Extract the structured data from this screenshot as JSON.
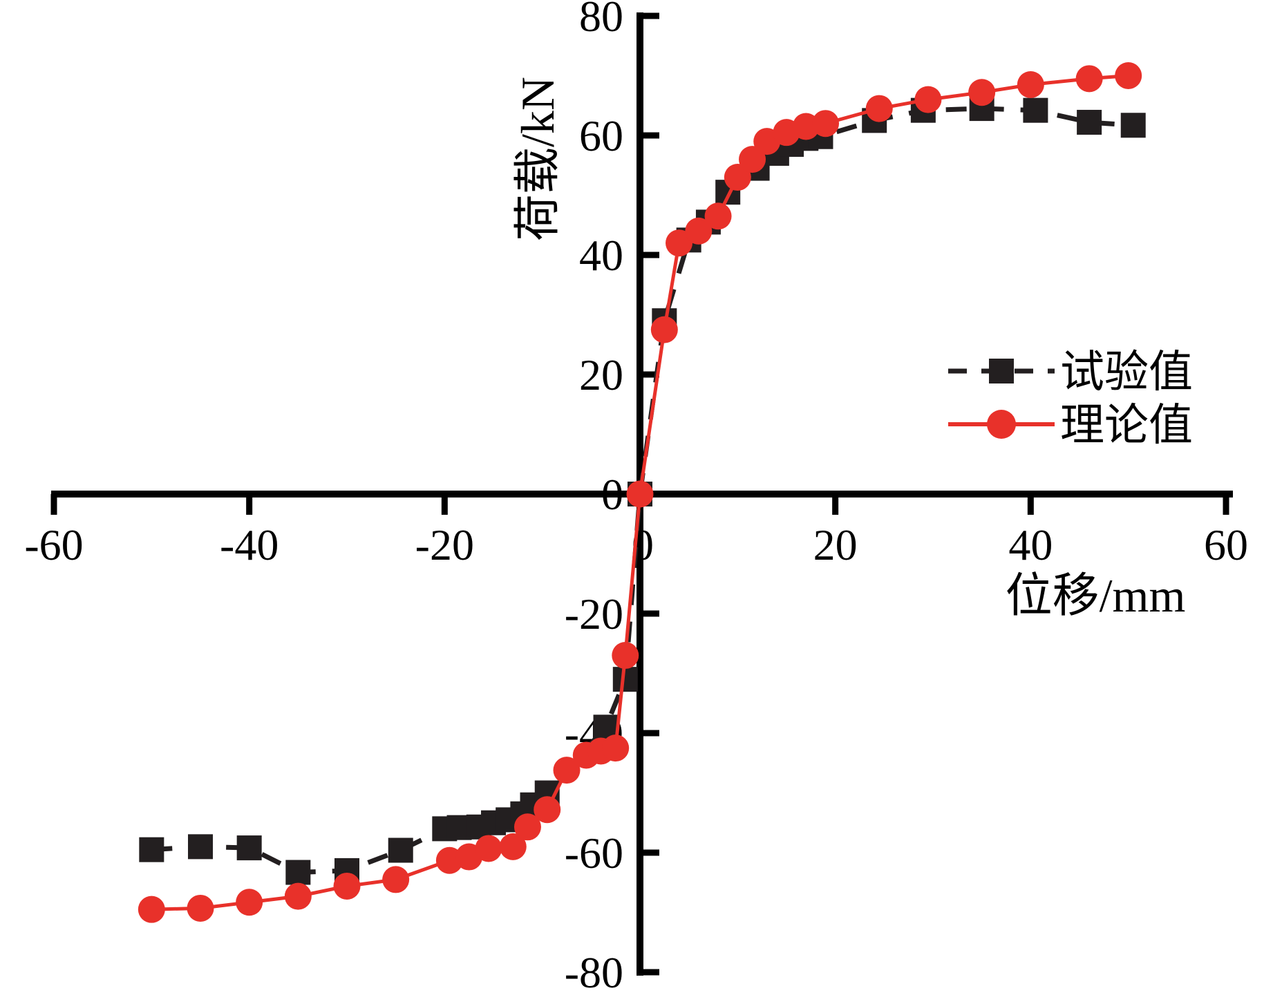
{
  "chart_data": {
    "type": "line",
    "title": "",
    "xlabel": "位移/mm",
    "ylabel": "荷载/kN",
    "xlim": [
      -60,
      60
    ],
    "ylim": [
      -80,
      80
    ],
    "x_ticks": [
      -60,
      -40,
      -20,
      0,
      20,
      40,
      60
    ],
    "y_ticks": [
      80,
      60,
      40,
      20,
      0,
      -20,
      -40,
      -60,
      -80
    ],
    "grid": false,
    "legend_position": "inside-right-upper",
    "colors": {
      "experimental": "#231f20",
      "theoretical": "#e8312a"
    },
    "series": [
      {
        "name": "试验值",
        "marker": "square",
        "line_style": "dashed",
        "color": "#231f20",
        "points": [
          [
            -50,
            -59.5
          ],
          [
            -45,
            -59.0
          ],
          [
            -40,
            -59.2
          ],
          [
            -35,
            -63.3
          ],
          [
            -30,
            -63.0
          ],
          [
            -24.5,
            -59.6
          ],
          [
            -20,
            -56.0
          ],
          [
            -18.5,
            -55.8
          ],
          [
            -16.5,
            -55.7
          ],
          [
            -15,
            -55.0
          ],
          [
            -13.5,
            -54.5
          ],
          [
            -12,
            -53.5
          ],
          [
            -11,
            -52.0
          ],
          [
            -9.5,
            -50.0
          ],
          [
            -3.5,
            -39.0
          ],
          [
            -1.5,
            -31.0
          ],
          [
            0,
            0
          ],
          [
            2.5,
            29.0
          ],
          [
            5,
            42.5
          ],
          [
            7,
            45.5
          ],
          [
            9,
            50.5
          ],
          [
            12,
            54.5
          ],
          [
            14,
            57.0
          ],
          [
            15.5,
            58.5
          ],
          [
            17,
            59.5
          ],
          [
            18.5,
            59.8
          ],
          [
            24,
            62.5
          ],
          [
            29,
            64.2
          ],
          [
            35,
            64.5
          ],
          [
            40.5,
            64.2
          ],
          [
            46,
            62.2
          ],
          [
            50.5,
            61.7
          ]
        ]
      },
      {
        "name": "理论值",
        "marker": "circle",
        "line_style": "solid",
        "color": "#e8312a",
        "points": [
          [
            -50,
            -69.5
          ],
          [
            -45,
            -69.3
          ],
          [
            -40,
            -68.3
          ],
          [
            -35,
            -67.3
          ],
          [
            -30,
            -65.6
          ],
          [
            -25,
            -64.5
          ],
          [
            -19.5,
            -61.3
          ],
          [
            -17.5,
            -60.7
          ],
          [
            -15.5,
            -59.3
          ],
          [
            -13,
            -59.0
          ],
          [
            -11.5,
            -55.7
          ],
          [
            -9.5,
            -52.8
          ],
          [
            -7.5,
            -46.2
          ],
          [
            -5.5,
            -43.7
          ],
          [
            -4,
            -43.0
          ],
          [
            -2.5,
            -42.5
          ],
          [
            -1.5,
            -27.0
          ],
          [
            0,
            0
          ],
          [
            2.5,
            27.5
          ],
          [
            4,
            42.0
          ],
          [
            6,
            44.0
          ],
          [
            8,
            46.5
          ],
          [
            10,
            53.0
          ],
          [
            11.5,
            56.0
          ],
          [
            13,
            59.0
          ],
          [
            15,
            60.5
          ],
          [
            17,
            61.5
          ],
          [
            19,
            62.0
          ],
          [
            24.5,
            64.5
          ],
          [
            29.5,
            66.0
          ],
          [
            35,
            67.2
          ],
          [
            40,
            68.5
          ],
          [
            46,
            69.5
          ],
          [
            50,
            70.0
          ]
        ]
      }
    ]
  }
}
